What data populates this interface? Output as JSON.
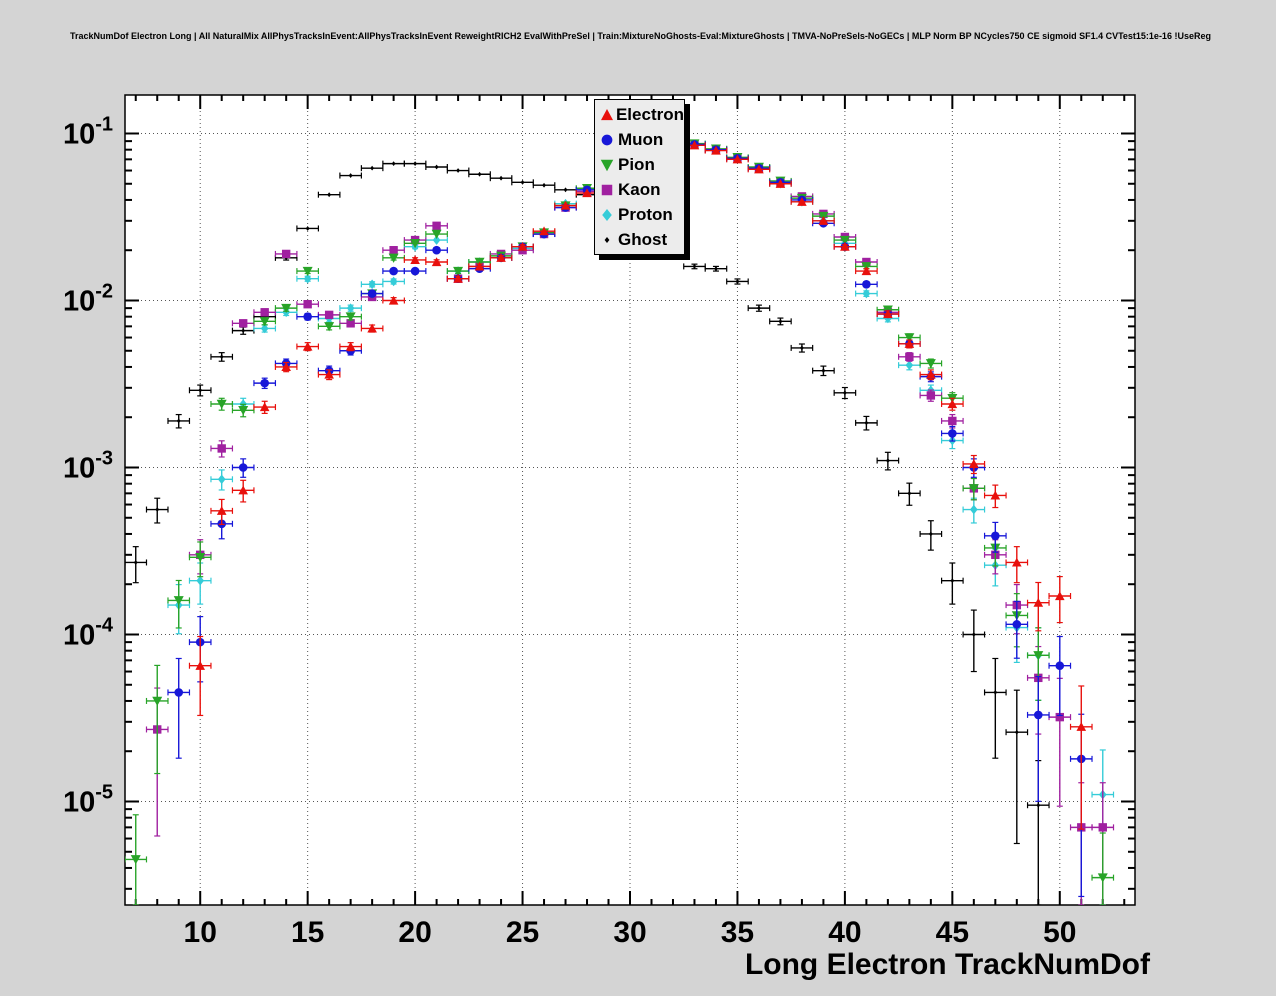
{
  "title": "TrackNumDof Electron Long | All NaturalMix AllPhysTracksInEvent:AllPhysTracksInEvent ReweightRICH2 EvalWithPreSel | Train:MixtureNoGhosts-Eval:MixtureGhosts | TMVA-NoPreSels-NoGECs | MLP Norm BP NCycles750 CE sigmoid SF1.4 CVTest15:1e-16 !UseReg",
  "chart_data": {
    "type": "scatter",
    "title": "",
    "xlabel": "Long Electron TrackNumDof",
    "ylabel": "",
    "y_scale": "log",
    "grid": true,
    "legend_position": "top-center",
    "x_range": [
      6.5,
      53.5
    ],
    "y_range": [
      2.4e-06,
      0.17
    ],
    "x_major_ticks": [
      10,
      15,
      20,
      25,
      30,
      35,
      40,
      45,
      50
    ],
    "y_tick_exponents": [
      -1,
      -2,
      -3,
      -4,
      -5
    ],
    "series": [
      {
        "name": "Electron",
        "color": "#e8100c",
        "marker": "triangle-up",
        "marker_size": 4.8,
        "points": [
          [
            10,
            6.5e-05
          ],
          [
            11,
            0.00055
          ],
          [
            12,
            0.00073
          ],
          [
            13,
            0.0023
          ],
          [
            14,
            0.004
          ],
          [
            15,
            0.0053
          ],
          [
            16,
            0.0036
          ],
          [
            17,
            0.0053
          ],
          [
            18,
            0.0068
          ],
          [
            19,
            0.01
          ],
          [
            20,
            0.0175
          ],
          [
            21,
            0.017
          ],
          [
            22,
            0.0135
          ],
          [
            23,
            0.016
          ],
          [
            24,
            0.018
          ],
          [
            25,
            0.021
          ],
          [
            26,
            0.026
          ],
          [
            27,
            0.037
          ],
          [
            28,
            0.044
          ],
          [
            29,
            0.052
          ],
          [
            30,
            0.062
          ],
          [
            31,
            0.072
          ],
          [
            32,
            0.08
          ],
          [
            33,
            0.085
          ],
          [
            34,
            0.079
          ],
          [
            35,
            0.07
          ],
          [
            36,
            0.061
          ],
          [
            37,
            0.05
          ],
          [
            38,
            0.039
          ],
          [
            39,
            0.03
          ],
          [
            40,
            0.021
          ],
          [
            41,
            0.015
          ],
          [
            42,
            0.0083
          ],
          [
            43,
            0.0055
          ],
          [
            44,
            0.0036
          ],
          [
            45,
            0.0024
          ],
          [
            46,
            0.00105
          ],
          [
            47,
            0.00068
          ],
          [
            48,
            0.00027
          ],
          [
            49,
            0.000155
          ],
          [
            50,
            0.00017
          ],
          [
            51,
            2.8e-05
          ]
        ]
      },
      {
        "name": "Muon",
        "color": "#1717d8",
        "marker": "circle",
        "marker_size": 4.3,
        "points": [
          [
            9,
            4.5e-05
          ],
          [
            10,
            9e-05
          ],
          [
            11,
            0.00046
          ],
          [
            12,
            0.001
          ],
          [
            13,
            0.0032
          ],
          [
            14,
            0.0042
          ],
          [
            15,
            0.008
          ],
          [
            16,
            0.0038
          ],
          [
            17,
            0.005
          ],
          [
            18,
            0.011
          ],
          [
            19,
            0.015
          ],
          [
            20,
            0.015
          ],
          [
            21,
            0.02
          ],
          [
            22,
            0.0135
          ],
          [
            23,
            0.0155
          ],
          [
            24,
            0.018
          ],
          [
            25,
            0.021
          ],
          [
            26,
            0.025
          ],
          [
            27,
            0.036
          ],
          [
            28,
            0.046
          ],
          [
            29,
            0.053
          ],
          [
            30,
            0.063
          ],
          [
            31,
            0.073
          ],
          [
            32,
            0.081
          ],
          [
            33,
            0.086
          ],
          [
            34,
            0.08
          ],
          [
            35,
            0.071
          ],
          [
            36,
            0.062
          ],
          [
            37,
            0.051
          ],
          [
            38,
            0.04
          ],
          [
            39,
            0.029
          ],
          [
            40,
            0.021
          ],
          [
            41,
            0.0125
          ],
          [
            42,
            0.0083
          ],
          [
            43,
            0.0055
          ],
          [
            44,
            0.0035
          ],
          [
            45,
            0.0016
          ],
          [
            46,
            0.001
          ],
          [
            47,
            0.00039
          ],
          [
            48,
            0.000115
          ],
          [
            49,
            3.3e-05
          ],
          [
            50,
            6.5e-05
          ],
          [
            51,
            1.8e-05
          ]
        ]
      },
      {
        "name": "Pion",
        "color": "#28a428",
        "marker": "triangle-down",
        "marker_size": 5.0,
        "points": [
          [
            7,
            4.5e-06
          ],
          [
            8,
            4e-05
          ],
          [
            9,
            0.00016
          ],
          [
            10,
            0.00029
          ],
          [
            11,
            0.0024
          ],
          [
            12,
            0.0022
          ],
          [
            13,
            0.0075
          ],
          [
            14,
            0.009
          ],
          [
            15,
            0.015
          ],
          [
            16,
            0.007
          ],
          [
            17,
            0.008
          ],
          [
            18,
            0.011
          ],
          [
            19,
            0.018
          ],
          [
            20,
            0.022
          ],
          [
            21,
            0.025
          ],
          [
            22,
            0.015
          ],
          [
            23,
            0.017
          ],
          [
            24,
            0.0185
          ],
          [
            25,
            0.021
          ],
          [
            26,
            0.0255
          ],
          [
            27,
            0.037
          ],
          [
            28,
            0.047
          ],
          [
            29,
            0.054
          ],
          [
            30,
            0.064
          ],
          [
            31,
            0.074
          ],
          [
            32,
            0.082
          ],
          [
            33,
            0.087
          ],
          [
            34,
            0.081
          ],
          [
            35,
            0.072
          ],
          [
            36,
            0.063
          ],
          [
            37,
            0.052
          ],
          [
            38,
            0.041
          ],
          [
            39,
            0.032
          ],
          [
            40,
            0.023
          ],
          [
            41,
            0.016
          ],
          [
            42,
            0.0088
          ],
          [
            43,
            0.006
          ],
          [
            44,
            0.0042
          ],
          [
            45,
            0.0026
          ],
          [
            46,
            0.00075
          ],
          [
            47,
            0.00033
          ],
          [
            48,
            0.00013
          ],
          [
            49,
            7.5e-05
          ],
          [
            52,
            3.5e-06
          ]
        ]
      },
      {
        "name": "Kaon",
        "color": "#a020a0",
        "marker": "square",
        "marker_size": 4.2,
        "points": [
          [
            8,
            2.7e-05
          ],
          [
            10,
            0.0003
          ],
          [
            11,
            0.0013
          ],
          [
            12,
            0.0073
          ],
          [
            13,
            0.0085
          ],
          [
            14,
            0.019
          ],
          [
            15,
            0.0095
          ],
          [
            16,
            0.0082
          ],
          [
            17,
            0.0073
          ],
          [
            18,
            0.0105
          ],
          [
            19,
            0.02
          ],
          [
            20,
            0.023
          ],
          [
            21,
            0.028
          ],
          [
            22,
            0.0135
          ],
          [
            23,
            0.016
          ],
          [
            24,
            0.019
          ],
          [
            25,
            0.02
          ],
          [
            26,
            0.025
          ],
          [
            27,
            0.036
          ],
          [
            28,
            0.045
          ],
          [
            29,
            0.053
          ],
          [
            30,
            0.063
          ],
          [
            31,
            0.073
          ],
          [
            32,
            0.081
          ],
          [
            33,
            0.086
          ],
          [
            34,
            0.08
          ],
          [
            35,
            0.071
          ],
          [
            36,
            0.062
          ],
          [
            37,
            0.051
          ],
          [
            38,
            0.042
          ],
          [
            39,
            0.033
          ],
          [
            40,
            0.024
          ],
          [
            41,
            0.017
          ],
          [
            42,
            0.0085
          ],
          [
            43,
            0.0046
          ],
          [
            44,
            0.0027
          ],
          [
            45,
            0.0019
          ],
          [
            46,
            0.00075
          ],
          [
            47,
            0.0003
          ],
          [
            48,
            0.00015
          ],
          [
            49,
            5.5e-05
          ],
          [
            50,
            3.2e-05
          ],
          [
            51,
            7e-06
          ],
          [
            52,
            7e-06
          ]
        ]
      },
      {
        "name": "Proton",
        "color": "#35ccd8",
        "marker": "diamond",
        "marker_size": 4.8,
        "points": [
          [
            9,
            0.00015
          ],
          [
            10,
            0.00021
          ],
          [
            11,
            0.00085
          ],
          [
            12,
            0.0024
          ],
          [
            13,
            0.0068
          ],
          [
            14,
            0.0085
          ],
          [
            15,
            0.0135
          ],
          [
            16,
            0.0078
          ],
          [
            17,
            0.009
          ],
          [
            18,
            0.0125
          ],
          [
            19,
            0.013
          ],
          [
            20,
            0.021
          ],
          [
            21,
            0.023
          ],
          [
            22,
            0.015
          ],
          [
            23,
            0.017
          ],
          [
            24,
            0.018
          ],
          [
            25,
            0.0205
          ],
          [
            26,
            0.025
          ],
          [
            27,
            0.038
          ],
          [
            28,
            0.046
          ],
          [
            29,
            0.053
          ],
          [
            30,
            0.063
          ],
          [
            31,
            0.073
          ],
          [
            32,
            0.081
          ],
          [
            33,
            0.086
          ],
          [
            34,
            0.08
          ],
          [
            35,
            0.071
          ],
          [
            36,
            0.062
          ],
          [
            37,
            0.05
          ],
          [
            38,
            0.039
          ],
          [
            39,
            0.03
          ],
          [
            40,
            0.022
          ],
          [
            41,
            0.011
          ],
          [
            42,
            0.0078
          ],
          [
            43,
            0.0041
          ],
          [
            44,
            0.0029
          ],
          [
            45,
            0.00145
          ],
          [
            46,
            0.00056
          ],
          [
            47,
            0.00026
          ],
          [
            48,
            0.00011
          ],
          [
            49,
            7.5e-05
          ],
          [
            52,
            1.1e-05
          ]
        ]
      },
      {
        "name": "Ghost",
        "color": "#000000",
        "marker": "diamond",
        "marker_size": 2.4,
        "points": [
          [
            7,
            0.00027
          ],
          [
            8,
            0.00056
          ],
          [
            9,
            0.0019
          ],
          [
            10,
            0.0029
          ],
          [
            11,
            0.0046
          ],
          [
            12,
            0.0066
          ],
          [
            13,
            0.008
          ],
          [
            14,
            0.018
          ],
          [
            15,
            0.027
          ],
          [
            16,
            0.043
          ],
          [
            17,
            0.056
          ],
          [
            18,
            0.062
          ],
          [
            19,
            0.066
          ],
          [
            20,
            0.066
          ],
          [
            21,
            0.063
          ],
          [
            22,
            0.06
          ],
          [
            23,
            0.057
          ],
          [
            24,
            0.054
          ],
          [
            25,
            0.051
          ],
          [
            26,
            0.049
          ],
          [
            27,
            0.046
          ],
          [
            28,
            0.043
          ],
          [
            29,
            0.035
          ],
          [
            30,
            0.028
          ],
          [
            31,
            0.023
          ],
          [
            32,
            0.019
          ],
          [
            33,
            0.016
          ],
          [
            34,
            0.0155
          ],
          [
            35,
            0.013
          ],
          [
            36,
            0.009
          ],
          [
            37,
            0.0075
          ],
          [
            38,
            0.0052
          ],
          [
            39,
            0.0038
          ],
          [
            40,
            0.0028
          ],
          [
            41,
            0.00185
          ],
          [
            42,
            0.0011
          ],
          [
            43,
            0.0007
          ],
          [
            44,
            0.0004
          ],
          [
            45,
            0.00021
          ],
          [
            46,
            0.0001
          ],
          [
            47,
            4.5e-05
          ],
          [
            48,
            2.6e-05
          ],
          [
            49,
            9.5e-06
          ]
        ]
      }
    ]
  }
}
